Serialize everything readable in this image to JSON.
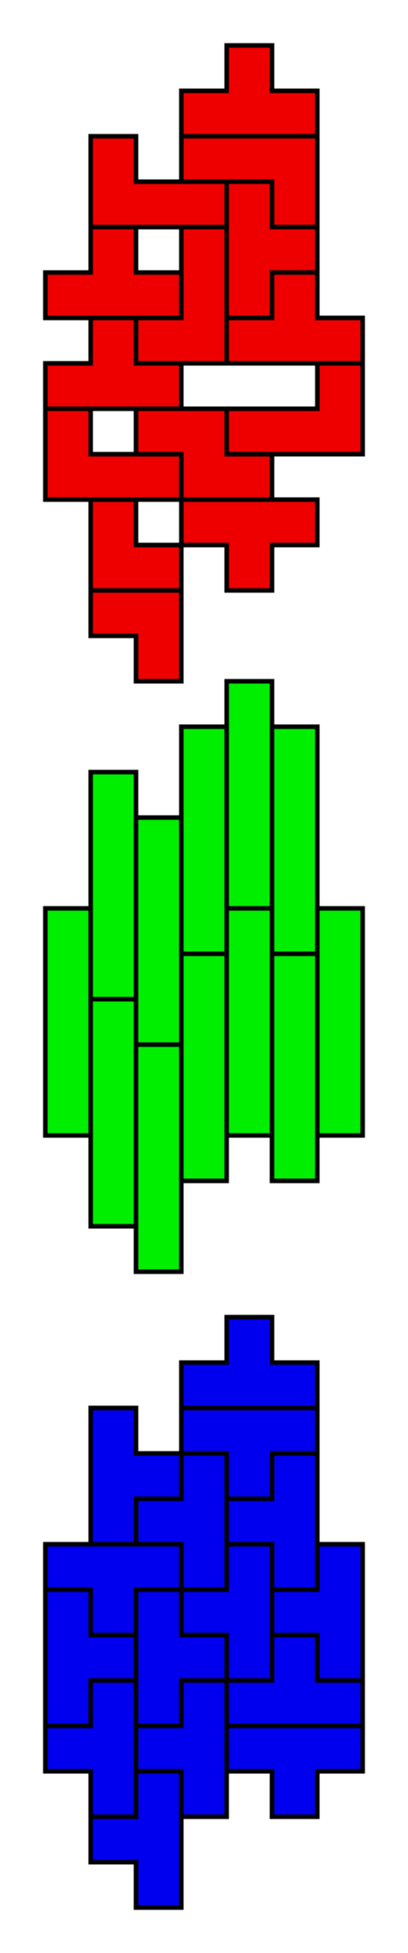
{
  "colors": {
    "background": "#ffffff",
    "outline": "#000000"
  },
  "tilings": [
    {
      "name": "red-tiling",
      "fill": "#ee0000",
      "pieces": [
        [
          [
            4,
            0
          ],
          [
            3,
            1
          ],
          [
            4,
            1
          ],
          [
            5,
            1
          ]
        ],
        [
          [
            3,
            2
          ],
          [
            4,
            2
          ],
          [
            5,
            2
          ],
          [
            5,
            3
          ]
        ],
        [
          [
            1,
            2
          ],
          [
            1,
            3
          ],
          [
            2,
            3
          ],
          [
            3,
            3
          ]
        ],
        [
          [
            4,
            3
          ],
          [
            4,
            4
          ],
          [
            5,
            4
          ],
          [
            4,
            5
          ]
        ],
        [
          [
            1,
            4
          ],
          [
            0,
            5
          ],
          [
            1,
            5
          ],
          [
            2,
            5
          ]
        ],
        [
          [
            3,
            4
          ],
          [
            3,
            5
          ],
          [
            3,
            6
          ],
          [
            2,
            6
          ]
        ],
        [
          [
            5,
            5
          ],
          [
            5,
            6
          ],
          [
            6,
            6
          ],
          [
            4,
            6
          ]
        ],
        [
          [
            1,
            6
          ],
          [
            1,
            7
          ],
          [
            2,
            7
          ],
          [
            0,
            7
          ]
        ],
        [
          [
            2,
            8
          ],
          [
            3,
            8
          ],
          [
            3,
            9
          ],
          [
            4,
            9
          ]
        ],
        [
          [
            6,
            7
          ],
          [
            6,
            8
          ],
          [
            5,
            8
          ],
          [
            4,
            8
          ]
        ],
        [
          [
            0,
            8
          ],
          [
            0,
            9
          ],
          [
            1,
            9
          ],
          [
            2,
            9
          ]
        ],
        [
          [
            3,
            10
          ],
          [
            4,
            10
          ],
          [
            4,
            11
          ],
          [
            5,
            10
          ]
        ],
        [
          [
            1,
            10
          ],
          [
            1,
            11
          ],
          [
            2,
            11
          ],
          [
            2,
            12
          ]
        ],
        [
          [
            2,
            13
          ],
          [
            2,
            12
          ],
          [
            1,
            12
          ]
        ]
      ]
    },
    {
      "name": "green-tiling",
      "fill": "#00ee00",
      "pieces": [
        [
          [
            4,
            0
          ],
          [
            4,
            1
          ],
          [
            4,
            2
          ],
          [
            4,
            3
          ],
          [
            4,
            4
          ]
        ],
        [
          [
            3,
            1
          ],
          [
            3,
            2
          ],
          [
            3,
            3
          ],
          [
            3,
            4
          ],
          [
            3,
            5
          ]
        ],
        [
          [
            5,
            1
          ],
          [
            5,
            2
          ],
          [
            5,
            3
          ],
          [
            5,
            4
          ],
          [
            5,
            5
          ]
        ],
        [
          [
            1,
            2
          ],
          [
            1,
            3
          ],
          [
            1,
            4
          ],
          [
            1,
            5
          ],
          [
            1,
            6
          ]
        ],
        [
          [
            2,
            3
          ],
          [
            2,
            4
          ],
          [
            2,
            5
          ],
          [
            2,
            6
          ],
          [
            2,
            7
          ]
        ],
        [
          [
            0,
            5
          ],
          [
            0,
            6
          ],
          [
            0,
            7
          ],
          [
            0,
            8
          ],
          [
            0,
            9
          ]
        ],
        [
          [
            4,
            5
          ],
          [
            4,
            6
          ],
          [
            4,
            7
          ],
          [
            4,
            8
          ],
          [
            4,
            9
          ]
        ],
        [
          [
            6,
            5
          ],
          [
            6,
            6
          ],
          [
            6,
            7
          ],
          [
            6,
            8
          ],
          [
            6,
            9
          ]
        ],
        [
          [
            3,
            6
          ],
          [
            3,
            7
          ],
          [
            3,
            8
          ],
          [
            3,
            9
          ],
          [
            3,
            10
          ]
        ],
        [
          [
            5,
            6
          ],
          [
            5,
            7
          ],
          [
            5,
            8
          ],
          [
            5,
            9
          ],
          [
            5,
            10
          ]
        ],
        [
          [
            1,
            7
          ],
          [
            1,
            8
          ],
          [
            1,
            9
          ],
          [
            1,
            10
          ],
          [
            1,
            11
          ]
        ],
        [
          [
            2,
            8
          ],
          [
            2,
            9
          ],
          [
            2,
            10
          ],
          [
            2,
            11
          ],
          [
            2,
            12
          ]
        ]
      ]
    },
    {
      "name": "blue-tiling",
      "fill": "#0000ee",
      "pieces": [
        [
          [
            4,
            0
          ],
          [
            3,
            1
          ],
          [
            4,
            1
          ],
          [
            5,
            1
          ]
        ],
        [
          [
            3,
            2
          ],
          [
            4,
            2
          ],
          [
            5,
            2
          ],
          [
            4,
            3
          ]
        ],
        [
          [
            1,
            2
          ],
          [
            1,
            3
          ],
          [
            2,
            3
          ],
          [
            1,
            4
          ]
        ],
        [
          [
            3,
            3
          ],
          [
            2,
            4
          ],
          [
            3,
            4
          ],
          [
            3,
            5
          ]
        ],
        [
          [
            5,
            3
          ],
          [
            4,
            4
          ],
          [
            5,
            4
          ],
          [
            5,
            5
          ]
        ],
        [
          [
            0,
            5
          ],
          [
            1,
            5
          ],
          [
            2,
            5
          ],
          [
            1,
            6
          ]
        ],
        [
          [
            4,
            5
          ],
          [
            4,
            6
          ],
          [
            3,
            6
          ],
          [
            4,
            7
          ]
        ],
        [
          [
            6,
            5
          ],
          [
            5,
            6
          ],
          [
            6,
            6
          ],
          [
            6,
            7
          ]
        ],
        [
          [
            0,
            6
          ],
          [
            0,
            7
          ],
          [
            1,
            7
          ],
          [
            0,
            8
          ]
        ],
        [
          [
            2,
            6
          ],
          [
            2,
            7
          ],
          [
            3,
            7
          ],
          [
            2,
            8
          ]
        ],
        [
          [
            5,
            7
          ],
          [
            4,
            8
          ],
          [
            5,
            8
          ],
          [
            6,
            8
          ]
        ],
        [
          [
            1,
            8
          ],
          [
            0,
            9
          ],
          [
            1,
            9
          ],
          [
            1,
            10
          ]
        ],
        [
          [
            3,
            8
          ],
          [
            2,
            9
          ],
          [
            3,
            9
          ],
          [
            3,
            10
          ]
        ],
        [
          [
            4,
            9
          ],
          [
            5,
            9
          ],
          [
            6,
            9
          ],
          [
            5,
            10
          ]
        ],
        [
          [
            2,
            10
          ],
          [
            1,
            11
          ],
          [
            2,
            11
          ],
          [
            2,
            12
          ]
        ]
      ]
    }
  ]
}
